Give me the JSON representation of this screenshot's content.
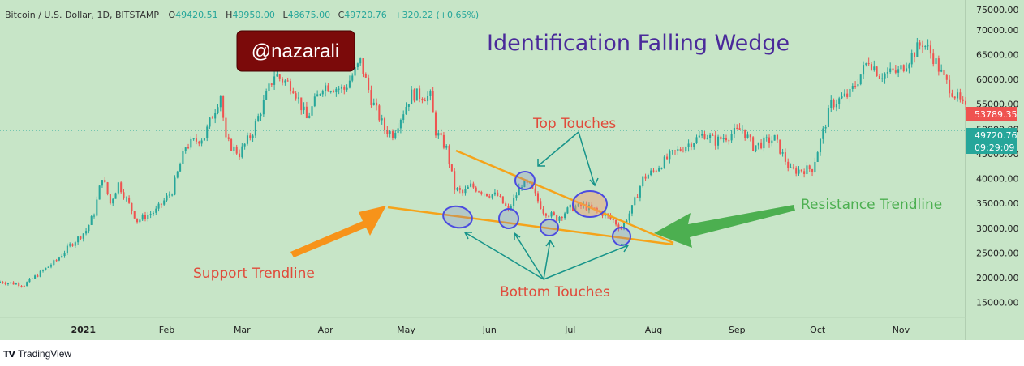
{
  "header": {
    "symbol": "Bitcoin / U.S. Dollar, 1D, BITSTAMP",
    "o_label": "O",
    "o_value": "49420.51",
    "h_label": "H",
    "h_value": "49950.00",
    "l_label": "L",
    "l_value": "48675.00",
    "c_label": "C",
    "c_value": "49720.76",
    "change": "+320.22 (+0.65%)"
  },
  "colors": {
    "background": "#c7e5c7",
    "up": "#26a69a",
    "down": "#ef5350",
    "trendline": "#f5a31a",
    "marker": "#5b5be0",
    "teal_arrow": "#17948a",
    "orange_arrow": "#f7931a",
    "green_arrow": "#4caf50"
  },
  "watermark": {
    "text": "@nazarali"
  },
  "annotations": {
    "title": "Identification Falling Wedge",
    "top_touches": "Top Touches",
    "bottom_touches": "Bottom Touches",
    "support": "Support Trendline",
    "resistance": "Resistance Trendline"
  },
  "price_badges": {
    "upper": {
      "value": "53789.35"
    },
    "current": {
      "value": "49720.76",
      "countdown": "09:29:09"
    }
  },
  "chart_data": {
    "type": "candlestick",
    "title": "Identification Falling Wedge",
    "symbol": "Bitcoin / U.S. Dollar, 1D, BITSTAMP",
    "ylim": [
      12000,
      76000
    ],
    "y_ticks": [
      "15000.00",
      "20000.00",
      "25000.00",
      "30000.00",
      "35000.00",
      "40000.00",
      "45000.00",
      "50000.00",
      "55000.00",
      "60000.00",
      "65000.00",
      "70000.00",
      "75000.00"
    ],
    "y_tick_values": [
      15000,
      20000,
      25000,
      30000,
      35000,
      40000,
      45000,
      50000,
      55000,
      60000,
      65000,
      70000,
      75000
    ],
    "x_ticks": [
      "2021",
      "Feb",
      "Mar",
      "Apr",
      "May",
      "Jun",
      "Jul",
      "Aug",
      "Sep",
      "Oct",
      "Nov"
    ],
    "x_tick_dates": [
      "2021-01-01",
      "2021-02-01",
      "2021-03-01",
      "2021-04-01",
      "2021-05-01",
      "2021-06-01",
      "2021-07-01",
      "2021-08-01",
      "2021-09-01",
      "2021-10-01",
      "2021-11-01"
    ],
    "date_range": [
      "2020-12-01",
      "2021-11-25"
    ],
    "close_path": [
      [
        "2020-12-01",
        19200
      ],
      [
        "2020-12-10",
        18600
      ],
      [
        "2020-12-16",
        21000
      ],
      [
        "2020-12-22",
        23500
      ],
      [
        "2020-12-27",
        26500
      ],
      [
        "2021-01-02",
        29500
      ],
      [
        "2021-01-05",
        33000
      ],
      [
        "2021-01-08",
        40500
      ],
      [
        "2021-01-11",
        35000
      ],
      [
        "2021-01-14",
        39000
      ],
      [
        "2021-01-21",
        31500
      ],
      [
        "2021-01-28",
        33500
      ],
      [
        "2021-02-03",
        37500
      ],
      [
        "2021-02-08",
        46500
      ],
      [
        "2021-02-15",
        48500
      ],
      [
        "2021-02-21",
        57000
      ],
      [
        "2021-02-23",
        47500
      ],
      [
        "2021-02-28",
        45000
      ],
      [
        "2021-03-05",
        49500
      ],
      [
        "2021-03-13",
        61000
      ],
      [
        "2021-03-20",
        58500
      ],
      [
        "2021-03-25",
        52000
      ],
      [
        "2021-03-31",
        58800
      ],
      [
        "2021-04-08",
        58000
      ],
      [
        "2021-04-14",
        63500
      ],
      [
        "2021-04-18",
        56000
      ],
      [
        "2021-04-23",
        50000
      ],
      [
        "2021-04-26",
        49000
      ],
      [
        "2021-05-03",
        57000
      ],
      [
        "2021-05-10",
        56500
      ],
      [
        "2021-05-12",
        49500
      ],
      [
        "2021-05-16",
        46000
      ],
      [
        "2021-05-19",
        38000
      ],
      [
        "2021-05-22",
        37000
      ],
      [
        "2021-05-25",
        38500
      ],
      [
        "2021-05-31",
        37000
      ],
      [
        "2021-06-04",
        36500
      ],
      [
        "2021-06-08",
        33500
      ],
      [
        "2021-06-13",
        39000
      ],
      [
        "2021-06-16",
        38500
      ],
      [
        "2021-06-21",
        33500
      ],
      [
        "2021-06-26",
        32000
      ],
      [
        "2021-07-01",
        34000
      ],
      [
        "2021-07-06",
        34500
      ],
      [
        "2021-07-13",
        33000
      ],
      [
        "2021-07-17",
        31500
      ],
      [
        "2021-07-20",
        30000
      ],
      [
        "2021-07-24",
        34000
      ],
      [
        "2021-07-28",
        40000
      ],
      [
        "2021-08-01",
        41500
      ],
      [
        "2021-08-07",
        44500
      ],
      [
        "2021-08-14",
        47000
      ],
      [
        "2021-08-20",
        49000
      ],
      [
        "2021-08-24",
        47500
      ],
      [
        "2021-09-03",
        50000
      ],
      [
        "2021-09-07",
        46500
      ],
      [
        "2021-09-15",
        48000
      ],
      [
        "2021-09-21",
        41500
      ],
      [
        "2021-09-29",
        42000
      ],
      [
        "2021-10-06",
        55000
      ],
      [
        "2021-10-13",
        57000
      ],
      [
        "2021-10-20",
        64000
      ],
      [
        "2021-10-24",
        61000
      ],
      [
        "2021-10-31",
        61500
      ],
      [
        "2021-11-09",
        67500
      ],
      [
        "2021-11-13",
        64500
      ],
      [
        "2021-11-17",
        60000
      ],
      [
        "2021-11-25",
        53800
      ],
      [
        "2021-11-25",
        49720
      ]
    ]
  }
}
